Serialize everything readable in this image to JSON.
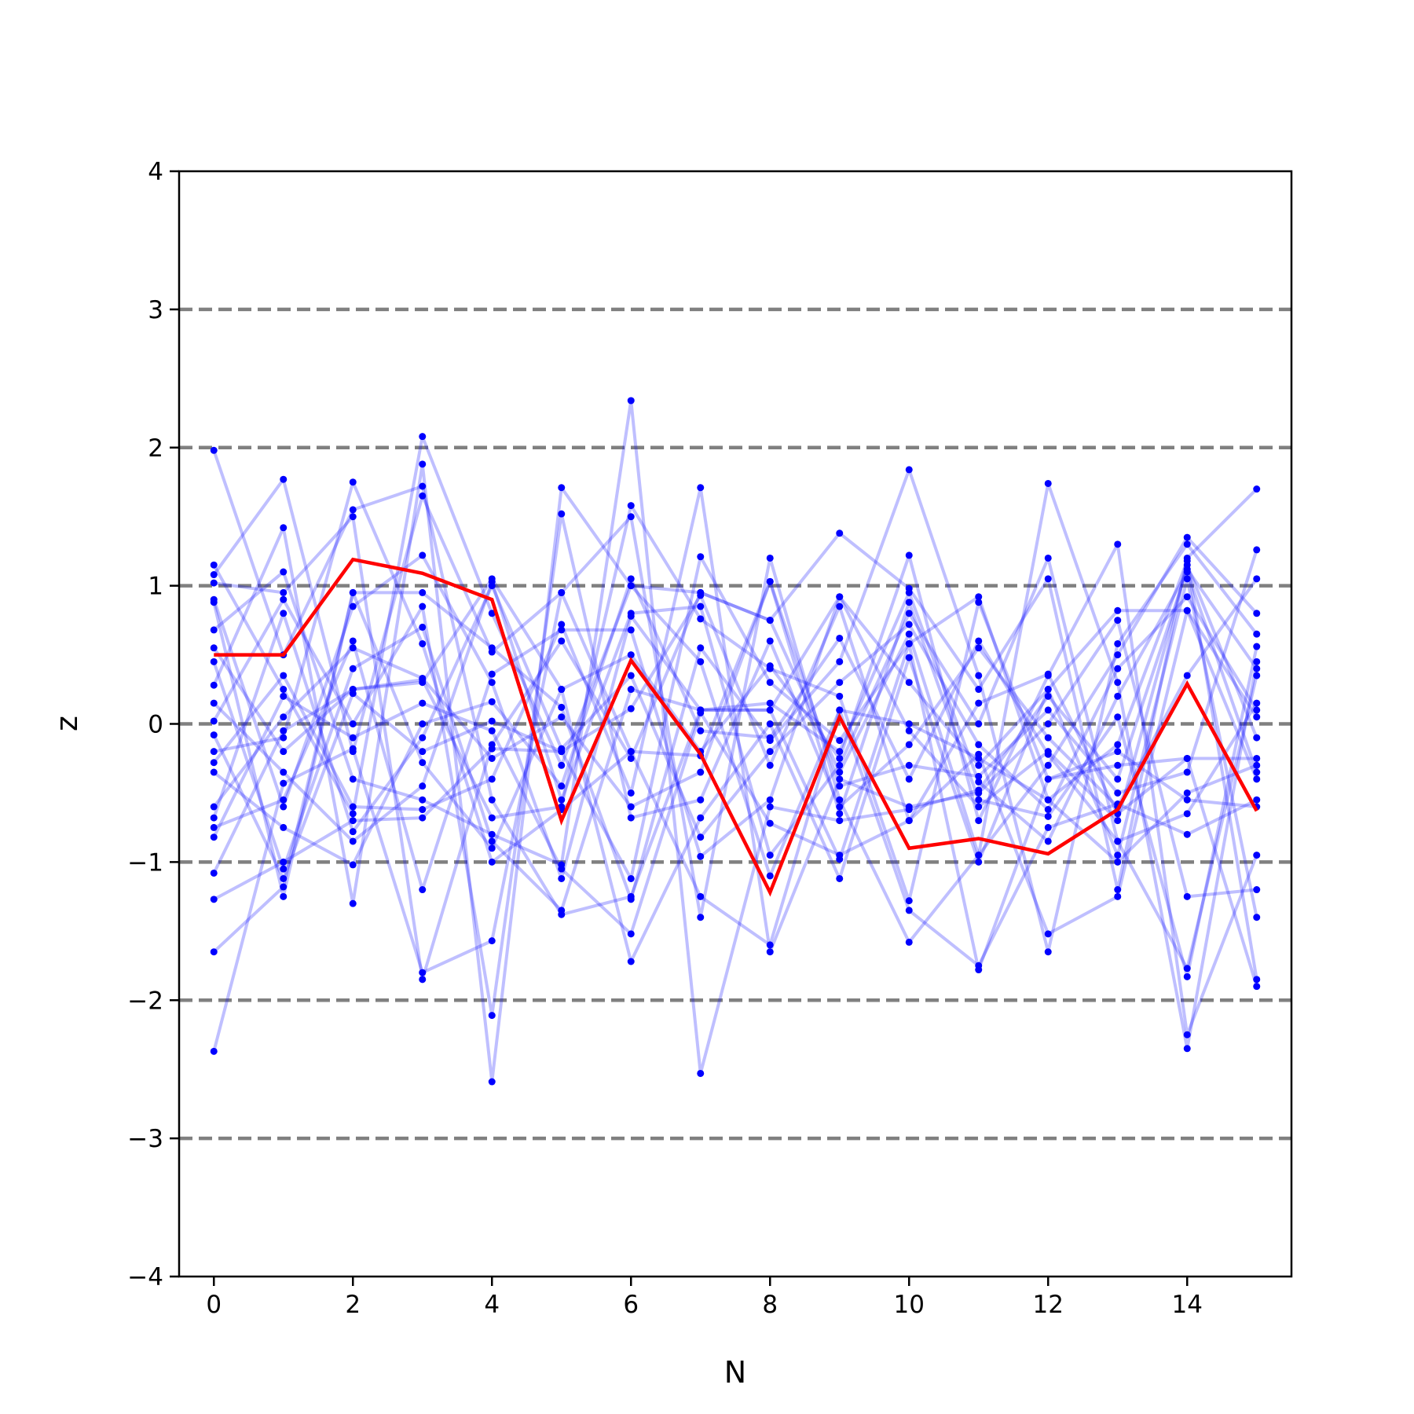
{
  "chart_data": {
    "type": "line",
    "title": "",
    "xlabel": "N",
    "ylabel": "z",
    "xlim": [
      -0.5,
      15.5
    ],
    "ylim": [
      -4,
      4
    ],
    "x_ticks": [
      0,
      2,
      4,
      6,
      8,
      10,
      12,
      14
    ],
    "y_ticks": [
      -4,
      -3,
      -2,
      -1,
      0,
      1,
      2,
      3,
      4
    ],
    "y_tick_labels": [
      "−4",
      "−3",
      "−2",
      "−1",
      "0",
      "1",
      "2",
      "3",
      "4"
    ],
    "reference_lines": [
      -3,
      -2,
      -1,
      0,
      1,
      2,
      3
    ],
    "grid": false,
    "colors": {
      "traces": "#0000ff",
      "highlight": "#ff0000",
      "reference": "#808080"
    },
    "x": [
      0,
      1,
      2,
      3,
      4,
      5,
      6,
      7,
      8,
      9,
      10,
      11,
      12,
      13,
      14,
      15
    ],
    "highlight_series": {
      "values": [
        0.5,
        0.5,
        1.19,
        1.09,
        0.9,
        -0.7,
        0.46,
        -0.22,
        -1.22,
        0.05,
        -0.9,
        -0.83,
        -0.94,
        -0.62,
        0.29,
        -0.63
      ]
    },
    "series": [
      {
        "values": [
          1.98,
          0.5,
          1.55,
          1.72,
          -0.55,
          -1.38,
          -1.25,
          0.1,
          0.1,
          0.92,
          0.3,
          -0.3,
          0.25,
          0.82,
          0.82,
          -0.4
        ]
      },
      {
        "values": [
          1.15,
          0.25,
          -0.65,
          2.08,
          0.8,
          -0.3,
          1.0,
          0.95,
          0.75,
          -0.35,
          0.65,
          -0.95,
          -0.3,
          0.5,
          1.35,
          0.8
        ]
      },
      {
        "values": [
          1.08,
          1.77,
          -0.2,
          1.65,
          0.52,
          0.95,
          1.5,
          -1.4,
          1.2,
          -0.55,
          -1.58,
          -0.95,
          1.74,
          0.3,
          -2.35,
          0.45
        ]
      },
      {
        "values": [
          1.02,
          0.95,
          1.5,
          -1.85,
          -0.15,
          0.6,
          -0.25,
          0.95,
          0.75,
          1.38,
          0.98,
          0.25,
          1.05,
          -1.2,
          1.2,
          1.7
        ]
      },
      {
        "values": [
          0.9,
          -0.6,
          0.85,
          1.22,
          0.3,
          -1.12,
          0.78,
          0.1,
          0.1,
          -0.98,
          0.58,
          -1.78,
          -0.4,
          -0.3,
          -0.25,
          -1.9
        ]
      },
      {
        "values": [
          0.88,
          -1.25,
          0.95,
          0.95,
          0.55,
          0.12,
          -1.27,
          0.55,
          -0.12,
          0.45,
          1.84,
          0.35,
          -1.65,
          0.58,
          1.3,
          0.65
        ]
      },
      {
        "values": [
          0.68,
          1.1,
          -0.4,
          -0.55,
          -0.8,
          -1.02,
          2.34,
          -2.53,
          -0.6,
          -0.7,
          -0.62,
          -0.48,
          0.2,
          -0.4,
          1.12,
          0.4
        ]
      },
      {
        "values": [
          0.55,
          -0.2,
          0.25,
          0.3,
          1.05,
          0.25,
          0.5,
          -0.2,
          0.42,
          -0.25,
          1.22,
          -0.7,
          0.35,
          1.3,
          -2.25,
          -0.95
        ]
      },
      {
        "values": [
          0.28,
          1.42,
          -1.3,
          1.88,
          -2.59,
          1.71,
          1.0,
          0.45,
          -1.1,
          0.1,
          0.0,
          -0.25,
          -0.55,
          -0.15,
          1.18,
          -1.85
        ]
      },
      {
        "values": [
          0.15,
          -0.35,
          -0.85,
          -0.45,
          1.03,
          -0.55,
          0.8,
          0.85,
          -0.95,
          -0.3,
          0.8,
          0.0,
          1.2,
          -0.85,
          -1.77,
          0.35
        ]
      },
      {
        "values": [
          0.02,
          0.9,
          0.0,
          0.85,
          -2.11,
          1.52,
          -0.68,
          -0.55,
          0.6,
          -0.6,
          -0.15,
          0.55,
          -0.1,
          -0.6,
          0.35,
          1.05
        ]
      },
      {
        "values": [
          -0.08,
          -1.12,
          0.22,
          -0.2,
          0.02,
          -0.2,
          -1.12,
          1.21,
          0.3,
          -0.12,
          0.58,
          0.92,
          -0.55,
          -1.0,
          -0.5,
          -0.3
        ]
      },
      {
        "values": [
          -0.2,
          -0.1,
          1.75,
          0.58,
          -1.0,
          -0.62,
          -0.2,
          -0.23,
          1.03,
          -0.45,
          -0.3,
          -0.38,
          0.1,
          -0.5,
          -0.35,
          1.26
        ]
      },
      {
        "values": [
          -0.28,
          0.35,
          -0.6,
          -0.62,
          -0.4,
          0.72,
          -0.5,
          1.71,
          -1.65,
          -0.4,
          -0.6,
          -0.5,
          0.0,
          0.75,
          -1.25,
          -1.2
        ]
      },
      {
        "values": [
          -0.35,
          -0.75,
          -1.02,
          0.0,
          0.16,
          -0.45,
          1.05,
          -0.05,
          -0.1,
          0.62,
          -0.4,
          0.6,
          -0.22,
          -0.85,
          -0.65,
          0.15
        ]
      },
      {
        "values": [
          -0.6,
          0.05,
          0.55,
          0.33,
          -0.25,
          0.05,
          -0.6,
          -0.35,
          1.03,
          -0.65,
          0.88,
          -0.55,
          -0.67,
          0.05,
          -1.83,
          0.56
        ]
      },
      {
        "values": [
          -0.68,
          0.8,
          -0.78,
          -0.1,
          1.0,
          -0.18,
          0.35,
          -0.82,
          -0.2,
          0.3,
          0.72,
          -0.15,
          -0.62,
          0.4,
          0.92,
          0.1
        ]
      },
      {
        "values": [
          -0.75,
          -0.55,
          0.6,
          -1.2,
          0.36,
          0.68,
          0.68,
          -0.96,
          -0.55,
          0.92,
          -0.05,
          -0.6,
          -0.2,
          -0.7,
          1.15,
          -0.1
        ]
      },
      {
        "values": [
          -0.82,
          0.2,
          -0.1,
          0.15,
          -0.05,
          -1.05,
          -1.52,
          0.08,
          -0.72,
          -0.95,
          -0.7,
          -0.22,
          -1.52,
          -1.25,
          0.82,
          0.05
        ]
      },
      {
        "values": [
          -1.08,
          -0.05,
          0.25,
          0.32,
          -0.68,
          -0.6,
          1.58,
          0.76,
          0.4,
          0.2,
          -1.28,
          0.88,
          -0.4,
          -0.2,
          -0.55,
          -0.6
        ]
      },
      {
        "values": [
          -1.27,
          -1.0,
          -0.7,
          -0.68,
          -0.18,
          -0.2,
          0.11,
          0.93,
          -0.3,
          0.85,
          -0.7,
          0.15,
          0.36,
          -0.65,
          -0.25,
          -0.25
        ]
      },
      {
        "values": [
          -1.65,
          -1.18,
          0.95,
          -0.28,
          -0.9,
          0.25,
          -1.72,
          -0.68,
          0.0,
          -1.12,
          0.48,
          -1.0,
          0.25,
          -0.95,
          1.05,
          -1.4
        ]
      },
      {
        "values": [
          -2.37,
          -0.43,
          -0.18,
          -1.8,
          -1.57,
          0.95,
          -0.2,
          -1.25,
          -1.6,
          0.1,
          -1.35,
          -1.75,
          -0.75,
          -0.58,
          -0.8,
          -0.55
        ]
      },
      {
        "values": [
          0.45,
          -1.05,
          0.4,
          0.7,
          -0.85,
          -1.35,
          0.25,
          0.1,
          0.15,
          -0.2,
          0.95,
          -0.42,
          -0.85,
          0.2,
          1.1,
          -0.35
        ]
      }
    ]
  }
}
